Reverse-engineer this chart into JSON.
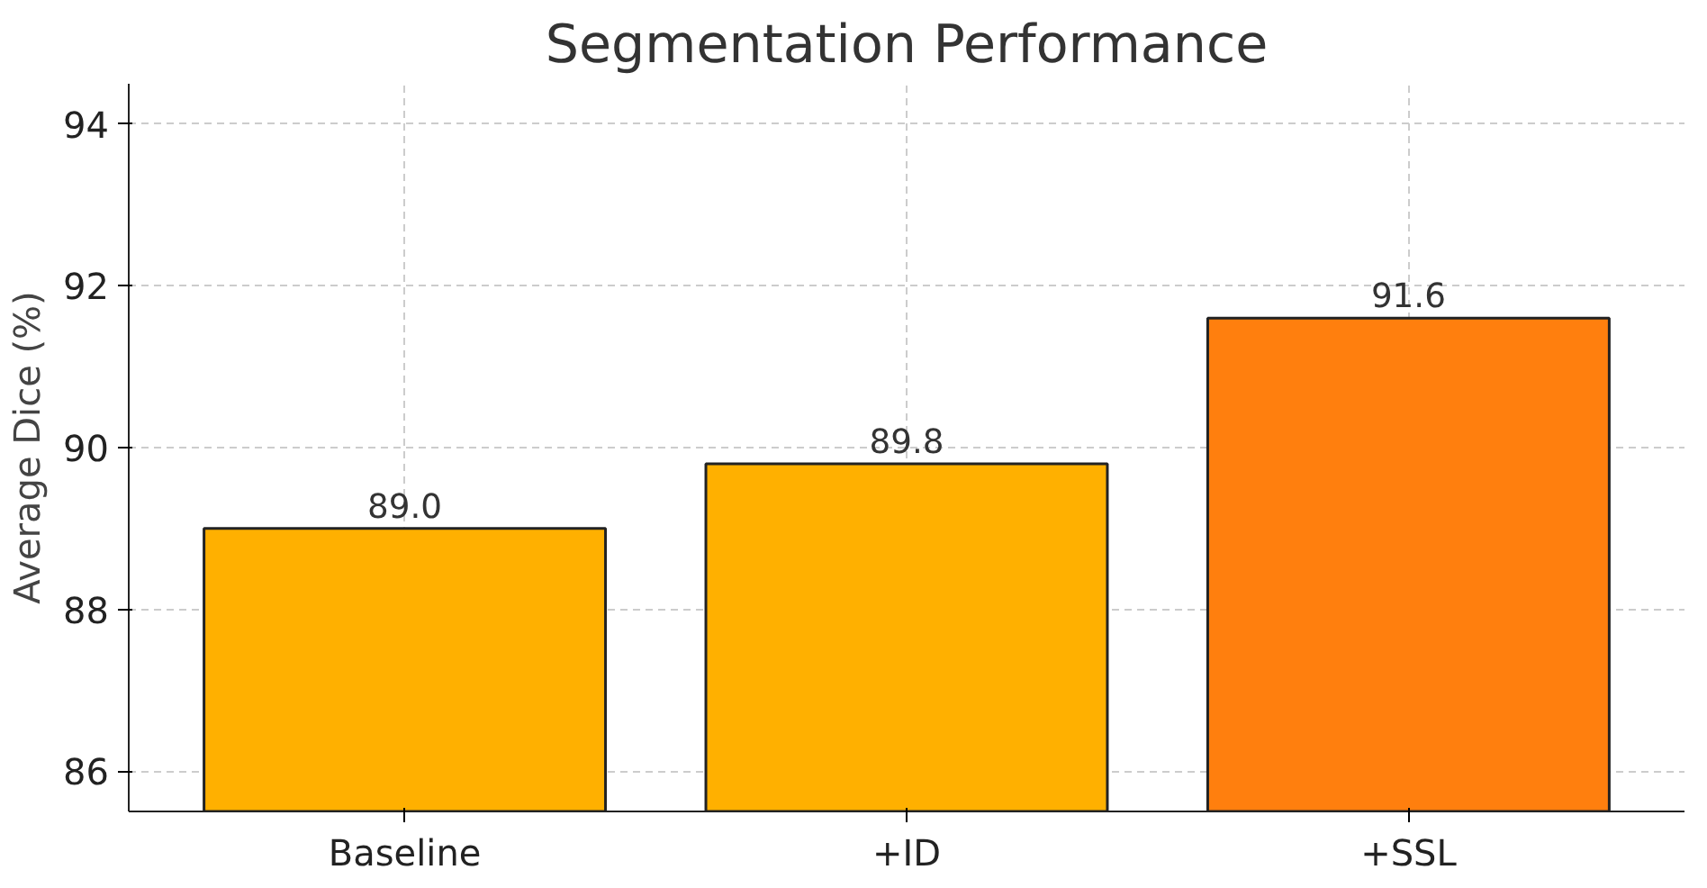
{
  "chart_data": {
    "type": "bar",
    "title": "Segmentation Performance",
    "ylabel": "Average Dice (%)",
    "categories": [
      "Baseline",
      "+ID",
      "+SSL"
    ],
    "values": [
      89.0,
      89.8,
      91.6
    ],
    "colors": [
      "#ffb000",
      "#ffb000",
      "#ff7f0e"
    ],
    "ylim": [
      85.5,
      94.5
    ],
    "yticks": [
      86,
      88,
      90,
      92,
      94
    ],
    "value_labels": [
      "89.0",
      "89.8",
      "91.6"
    ],
    "grid": true
  }
}
